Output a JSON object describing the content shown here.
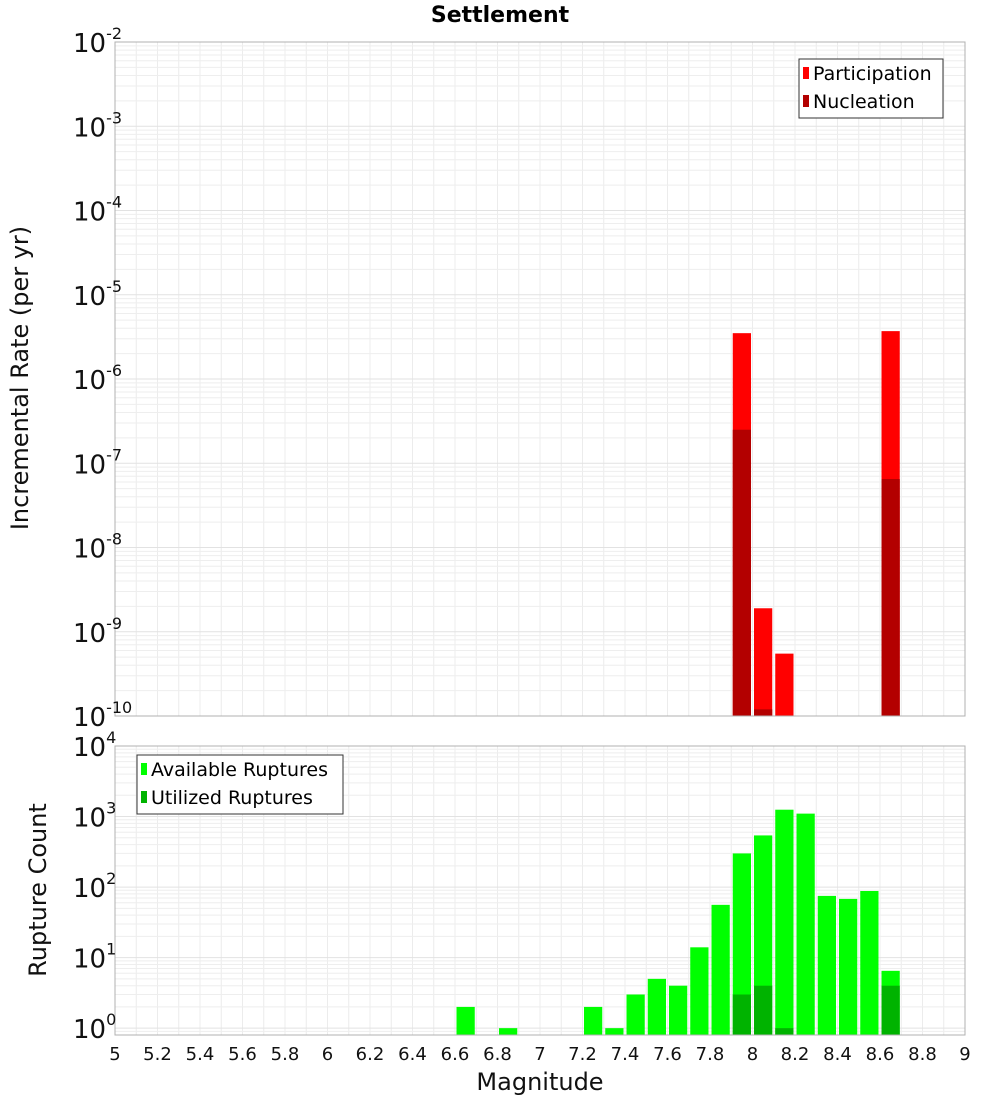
{
  "chart_data": [
    {
      "type": "bar",
      "title": "Settlement",
      "xlabel": "",
      "ylabel": "Incremental Rate (per yr)",
      "yscale": "log",
      "ylim": [
        1e-10,
        0.01
      ],
      "xlim": [
        5,
        9
      ],
      "bin_width": 0.1,
      "legend_position": "top-right",
      "grid": true,
      "y_tick_exponents": [
        "-10",
        "-9",
        "-8",
        "-7",
        "-6",
        "-5",
        "-4",
        "-3",
        "-2"
      ],
      "y_tick_base": "10",
      "series": [
        {
          "name": "Participation",
          "color": "#ff0000",
          "x": [
            7.95,
            8.05,
            8.15,
            8.65
          ],
          "values": [
            3.5e-06,
            1.9e-09,
            5.5e-10,
            3.7e-06
          ]
        },
        {
          "name": "Nucleation",
          "color": "#b30000",
          "x": [
            7.95,
            8.05,
            8.65
          ],
          "values": [
            2.5e-07,
            1.2e-10,
            6.5e-08
          ]
        }
      ]
    },
    {
      "type": "bar",
      "title": "",
      "xlabel": "Magnitude",
      "ylabel": "Rupture Count",
      "yscale": "log",
      "ylim": [
        0.8,
        10000
      ],
      "xlim": [
        5,
        9
      ],
      "bin_width": 0.1,
      "legend_position": "top-left",
      "grid": true,
      "y_tick_exponents": [
        "0",
        "1",
        "2",
        "3",
        "4"
      ],
      "y_tick_base": "10",
      "x_ticks": [
        "5",
        "5.2",
        "5.4",
        "5.6",
        "5.8",
        "6",
        "6.2",
        "6.4",
        "6.6",
        "6.8",
        "7",
        "7.2",
        "7.4",
        "7.6",
        "7.8",
        "8",
        "8.2",
        "8.4",
        "8.6",
        "8.8",
        "9"
      ],
      "series": [
        {
          "name": "Available Ruptures",
          "color": "#00ff00",
          "x": [
            6.65,
            6.85,
            7.25,
            7.35,
            7.45,
            7.55,
            7.65,
            7.75,
            7.85,
            7.95,
            8.05,
            8.15,
            8.25,
            8.35,
            8.45,
            8.55,
            8.65
          ],
          "values": [
            2,
            1,
            2,
            1,
            3,
            5,
            4,
            14,
            56,
            300,
            540,
            1250,
            1100,
            75,
            68,
            88,
            6.5
          ]
        },
        {
          "name": "Utilized Ruptures",
          "color": "#00b300",
          "x": [
            7.95,
            8.05,
            8.15,
            8.65
          ],
          "values": [
            3,
            4,
            1,
            4
          ]
        }
      ]
    }
  ]
}
